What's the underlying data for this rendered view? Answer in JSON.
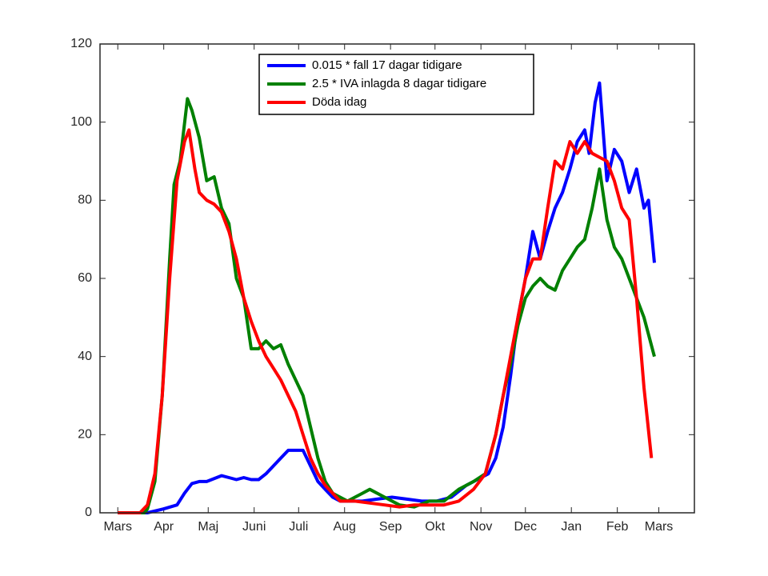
{
  "chart_data": {
    "type": "line",
    "xlim": [
      -12,
      389
    ],
    "ylim": [
      0,
      120
    ],
    "xticks": [
      {
        "value": 0,
        "label": "Mars"
      },
      {
        "value": 31,
        "label": "Apr"
      },
      {
        "value": 61,
        "label": "Maj"
      },
      {
        "value": 92,
        "label": "Juni"
      },
      {
        "value": 122,
        "label": "Juli"
      },
      {
        "value": 153,
        "label": "Aug"
      },
      {
        "value": 184,
        "label": "Sep"
      },
      {
        "value": 214,
        "label": "Okt"
      },
      {
        "value": 245,
        "label": "Nov"
      },
      {
        "value": 275,
        "label": "Dec"
      },
      {
        "value": 306,
        "label": "Jan"
      },
      {
        "value": 337,
        "label": "Feb"
      },
      {
        "value": 365,
        "label": "Mars"
      }
    ],
    "yticks": [
      0,
      20,
      40,
      60,
      80,
      100,
      120
    ],
    "legend": "upper center",
    "series": [
      {
        "name": "0.015 * fall 17 dagar tidigare",
        "color": "#0000ff",
        "x": [
          0,
          20,
          31,
          40,
          45,
          50,
          55,
          60,
          70,
          75,
          80,
          85,
          90,
          95,
          100,
          105,
          110,
          115,
          120,
          125,
          130,
          135,
          140,
          145,
          150,
          155,
          165,
          175,
          185,
          195,
          205,
          215,
          225,
          235,
          245,
          250,
          255,
          260,
          265,
          270,
          275,
          280,
          285,
          290,
          295,
          300,
          305,
          310,
          315,
          318,
          322,
          325,
          330,
          335,
          340,
          345,
          350,
          355,
          358,
          362
        ],
        "values": [
          0,
          0,
          1,
          2,
          5,
          7.5,
          8,
          8,
          9.5,
          9,
          8.5,
          9,
          8.5,
          8.5,
          10,
          12,
          14,
          16,
          16,
          16,
          12,
          8,
          6,
          4,
          3,
          3,
          3,
          3.5,
          4,
          3.5,
          3,
          3,
          4,
          7,
          9,
          10,
          14,
          22,
          35,
          50,
          60,
          72,
          65,
          72,
          78,
          82,
          88,
          95,
          98,
          92,
          105,
          110,
          85,
          93,
          90,
          82,
          88,
          78,
          80,
          64
        ]
      },
      {
        "name": "2.5 * IVA inlagda 8 dagar tidigare",
        "color": "#008000",
        "x": [
          0,
          18,
          20,
          25,
          30,
          35,
          38,
          42,
          47,
          50,
          55,
          60,
          65,
          70,
          75,
          80,
          85,
          90,
          95,
          100,
          105,
          110,
          115,
          120,
          125,
          130,
          135,
          140,
          145,
          155,
          165,
          170,
          180,
          190,
          200,
          210,
          220,
          230,
          240,
          248,
          255,
          260,
          265,
          270,
          275,
          280,
          285,
          290,
          295,
          300,
          305,
          310,
          315,
          320,
          325,
          330,
          335,
          340,
          345,
          350,
          355,
          362
        ],
        "values": [
          0,
          0,
          1,
          8,
          30,
          65,
          84,
          90,
          106,
          103,
          96,
          85,
          86,
          78,
          74,
          60,
          55,
          42,
          42,
          44,
          42,
          43,
          38,
          34,
          30,
          22,
          14,
          8,
          5,
          3,
          5,
          6,
          4,
          2,
          1.5,
          3,
          3,
          6,
          8,
          10,
          20,
          30,
          38,
          48,
          55,
          58,
          60,
          58,
          57,
          62,
          65,
          68,
          70,
          78,
          88,
          75,
          68,
          65,
          60,
          55,
          50,
          40
        ]
      },
      {
        "name": "Döda idag",
        "color": "#ff0000",
        "x": [
          0,
          15,
          20,
          25,
          30,
          35,
          40,
          45,
          48,
          52,
          55,
          60,
          65,
          70,
          75,
          80,
          85,
          90,
          95,
          100,
          105,
          110,
          115,
          120,
          125,
          130,
          135,
          140,
          145,
          150,
          160,
          170,
          180,
          190,
          200,
          210,
          220,
          230,
          240,
          248,
          255,
          260,
          265,
          270,
          275,
          280,
          285,
          290,
          295,
          300,
          305,
          310,
          315,
          320,
          325,
          330,
          335,
          340,
          345,
          350,
          355,
          360
        ],
        "values": [
          0,
          0,
          2,
          10,
          30,
          60,
          85,
          95,
          98,
          88,
          82,
          80,
          79,
          77,
          72,
          65,
          55,
          49,
          44,
          40,
          37,
          34,
          30,
          26,
          20,
          14,
          10,
          7,
          5,
          3,
          3,
          2.5,
          2,
          1.5,
          2,
          2,
          2,
          3,
          6,
          10,
          20,
          30,
          40,
          50,
          60,
          65,
          65,
          78,
          90,
          88,
          95,
          92,
          95,
          92,
          91,
          90,
          85,
          78,
          75,
          55,
          32,
          14
        ]
      }
    ]
  }
}
